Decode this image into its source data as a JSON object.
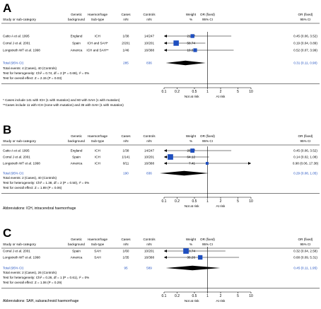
{
  "colors": {
    "accent": "#1f4fbf",
    "line": "#000000"
  },
  "headers": {
    "study": "Study or sub-category",
    "genetic": [
      "Genetic",
      "background"
    ],
    "haem": [
      "Haemorrhage",
      "Sub-type"
    ],
    "cases": [
      "Cases",
      "n/N"
    ],
    "controls": [
      "Controls",
      "n/N"
    ],
    "or_plot": [
      "OR (fixed)",
      "95% CI"
    ],
    "weight": [
      "Weight",
      "%"
    ],
    "or_text": [
      "OR (fixed)",
      "95% CI"
    ]
  },
  "chart_data": [
    {
      "type": "forest",
      "panel_label": "A",
      "xscale": "log",
      "xlim": [
        0.1,
        10
      ],
      "ticks": [
        "0.1",
        "0.2",
        "0.5",
        "1",
        "2",
        "5",
        "10"
      ],
      "tick_values": [
        0.1,
        0.2,
        0.5,
        1,
        2,
        5,
        10
      ],
      "left_label": "Not at risk",
      "right_label": "At risk",
      "studies": [
        {
          "name": "Catto A et al. 1995",
          "background": "England",
          "subtype": "ICH",
          "cases": "1/38",
          "controls": "14/247",
          "weight_text": "21.57",
          "ci_text": "0.45 (0.06, 3.52)",
          "weight": 21.57,
          "or": 0.45,
          "lo": 0.06,
          "hi": 3.52,
          "arrow_right": false
        },
        {
          "name": "Corral J et al. 2001",
          "background": "Spain",
          "subtype": "ICH and SAH*",
          "cases": "2/201",
          "controls": "10/201",
          "weight_text": "58.74",
          "ci_text": "0.19 (0.04, 0.89)",
          "weight": 58.74,
          "or": 0.19,
          "lo": 0.04,
          "hi": 0.89,
          "arrow_right": false
        },
        {
          "name": "Longstreth WT et al. 1998",
          "background": "America",
          "subtype": "ICH and SAH**",
          "cases": "1/46",
          "controls": "16/388",
          "weight_text": "19.69",
          "ci_text": "0.52 (0.07, 3.99)",
          "weight": 19.69,
          "or": 0.52,
          "lo": 0.07,
          "hi": 3.99,
          "arrow_right": false
        }
      ],
      "total": {
        "label": "Total (95% CI)",
        "cases": "285",
        "controls": "836",
        "weight_text": "100.00",
        "ci_text": "0.31 (0.11, 0.90)",
        "or": 0.31,
        "lo": 0.11,
        "hi": 0.9
      },
      "stats": [
        "Total events: 4 (Cases), 40 (Controls)",
        "Test for heterogeneity: Chi² = 0.74, df = 2 (P = 0.69), I² = 0%",
        "Test for overall effect: Z = 2.15 (P = 0.03)"
      ],
      "footnotes": [
        "* Cases include 141 with ICH (1 with mutation) and 60 with SAH (1 with mutation)",
        "**Cases include 11 with ICH (none with mutation) and 35 with SAH (1 with mutation)"
      ]
    },
    {
      "type": "forest",
      "panel_label": "B",
      "xscale": "log",
      "xlim": [
        0.1,
        10
      ],
      "ticks": [
        "0.1",
        "0.2",
        "0.5",
        "1",
        "2",
        "5",
        "10"
      ],
      "tick_values": [
        0.1,
        0.2,
        0.5,
        1,
        2,
        5,
        10
      ],
      "left_label": "Not at risk",
      "right_label": "At risk",
      "studies": [
        {
          "name": "Catto A et al. 1995",
          "background": "England",
          "subtype": "ICH",
          "cases": "1/38",
          "controls": "14/247",
          "weight_text": "28.47",
          "ci_text": "0.45 (0.06, 3.52)",
          "weight": 28.47,
          "or": 0.45,
          "lo": 0.06,
          "hi": 3.52,
          "arrow_right": false
        },
        {
          "name": "Corral J et al. 2001",
          "background": "Spain",
          "subtype": "ICH",
          "cases": "1/141",
          "controls": "10/201",
          "weight_text": "64.12",
          "ci_text": "0.14 (0.02, 1.08)",
          "weight": 64.12,
          "or": 0.14,
          "lo": 0.02,
          "hi": 1.08,
          "arrow_right": false
        },
        {
          "name": "Longstreth WT et al. 1998",
          "background": "America",
          "subtype": "ICH",
          "cases": "0/11",
          "controls": "16/388",
          "weight_text": "7.41",
          "ci_text": "0.98 (0.06, 17.38)",
          "weight": 7.41,
          "or": 0.98,
          "lo": 0.06,
          "hi": 17.38,
          "arrow_right": true
        }
      ],
      "total": {
        "label": "Total (95% CI)",
        "cases": "190",
        "controls": "836",
        "weight_text": "100.00",
        "ci_text": "0.29 (0.08, 1.05)",
        "or": 0.29,
        "lo": 0.08,
        "hi": 1.05
      },
      "stats": [
        "Total events: 2 (Cases), 40 (Controls)",
        "Test for heterogeneity: Chi² = 1.38, df = 2 (P = 0.50), I² = 0%",
        "Test for overall effect: Z = 1.89 (P = 0.06)"
      ],
      "footnotes": [
        "Abbreviations: ICH, intracerebral haemorrhage"
      ]
    },
    {
      "type": "forest",
      "panel_label": "C",
      "xscale": "log",
      "xlim": [
        0.1,
        10
      ],
      "ticks": [
        "0.1",
        "0.2",
        "0.5",
        "1",
        "2",
        "5",
        "10"
      ],
      "tick_values": [
        0.1,
        0.2,
        0.5,
        1,
        2,
        5,
        10
      ],
      "left_label": "Not at risk",
      "right_label": "At risk",
      "studies": [
        {
          "name": "Corral J et al. 2001",
          "background": "Spain",
          "subtype": "SAH",
          "cases": "1/60",
          "controls": "10/201",
          "weight_text": "63.74",
          "ci_text": "0.32 (0.04, 2.58)",
          "weight": 63.74,
          "or": 0.32,
          "lo": 0.04,
          "hi": 2.58,
          "arrow_right": false
        },
        {
          "name": "Longstreth WT et al. 1998",
          "background": "America",
          "subtype": "SAH",
          "cases": "1/35",
          "controls": "16/388",
          "weight_text": "36.26",
          "ci_text": "0.68 (0.09, 5.31)",
          "weight": 36.26,
          "or": 0.68,
          "lo": 0.09,
          "hi": 5.31,
          "arrow_right": false
        }
      ],
      "total": {
        "label": "Total (95% CI)",
        "cases": "95",
        "controls": "589",
        "weight_text": "100.00",
        "ci_text": "0.45 (0.11, 1.95)",
        "or": 0.45,
        "lo": 0.11,
        "hi": 1.95
      },
      "stats": [
        "Total events: 2 (Cases), 26 (Controls)",
        "Test for heterogeneity: Chi² = 0.26, df = 1 (P = 0.61), I² = 0%",
        "Test for overall effect: Z = 1.06 (P = 0.29)"
      ],
      "footnotes": [
        "Abbreviations: SAH, subarachnoid haemorrhage"
      ]
    }
  ]
}
